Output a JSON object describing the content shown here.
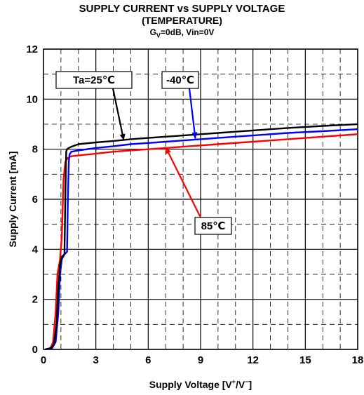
{
  "title": "SUPPLY CURRENT vs SUPPLY VOLTAGE",
  "subtitle": "(TEMPERATURE)",
  "conditions": {
    "gv": "G",
    "gv_sub": "V",
    "rest": "=0dB, Vin=0V"
  },
  "colors": {
    "ta25": "#000000",
    "m40": "#0000ff",
    "p85": "#ff0000",
    "grid": "#000000"
  },
  "chart_data": {
    "type": "line",
    "title": "SUPPLY CURRENT vs SUPPLY VOLTAGE",
    "subtitle": "(TEMPERATURE)",
    "xlabel": "Supply Voltage [V+/V−]",
    "ylabel": "Supply Current [mA]",
    "xlim": [
      0,
      18
    ],
    "ylim": [
      0,
      12
    ],
    "xticks": [
      "0",
      "3",
      "6",
      "9",
      "12",
      "15",
      "18"
    ],
    "yticks": [
      "0",
      "2",
      "4",
      "6",
      "8",
      "10",
      "12"
    ],
    "grid": true,
    "series": [
      {
        "name": "Ta=25℃",
        "color": "#000000",
        "x": [
          0.1,
          0.4,
          0.6,
          0.75,
          0.85,
          0.95,
          1.05,
          1.2,
          1.25,
          1.3,
          1.35,
          1.45,
          1.6,
          2.0,
          3,
          4,
          5,
          6,
          7,
          8,
          9,
          10,
          12,
          14,
          16,
          18
        ],
        "y": [
          0,
          0.05,
          0.2,
          1.0,
          2.5,
          3.4,
          3.7,
          3.8,
          6.0,
          7.9,
          8.0,
          8.05,
          8.1,
          8.2,
          8.27,
          8.33,
          8.4,
          8.45,
          8.5,
          8.55,
          8.6,
          8.65,
          8.75,
          8.85,
          8.93,
          9.0
        ]
      },
      {
        "name": "-40℃",
        "color": "#0000ff",
        "x": [
          0.1,
          0.5,
          0.7,
          0.85,
          0.95,
          1.05,
          1.2,
          1.35,
          1.4,
          1.45,
          1.5,
          1.6,
          2.0,
          3,
          4,
          5,
          6,
          7,
          8,
          9,
          10,
          12,
          14,
          16,
          18
        ],
        "y": [
          0,
          0.05,
          0.3,
          1.5,
          3.0,
          3.6,
          3.8,
          3.9,
          6.0,
          7.5,
          7.8,
          7.9,
          7.95,
          8.05,
          8.12,
          8.2,
          8.25,
          8.3,
          8.35,
          8.4,
          8.45,
          8.55,
          8.65,
          8.72,
          8.8
        ]
      },
      {
        "name": "85℃",
        "color": "#ff0000",
        "x": [
          0.1,
          0.4,
          0.55,
          0.7,
          0.8,
          0.95,
          1.05,
          1.15,
          1.25,
          1.4,
          1.6,
          2.0,
          3,
          4,
          5,
          6,
          7,
          8,
          9,
          10,
          12,
          14,
          16,
          18
        ],
        "y": [
          0,
          0.05,
          0.3,
          1.5,
          3.0,
          3.6,
          4.5,
          6.8,
          7.5,
          7.65,
          7.72,
          7.75,
          7.82,
          7.9,
          7.95,
          8.0,
          8.05,
          8.1,
          8.15,
          8.2,
          8.3,
          8.4,
          8.5,
          8.6
        ]
      }
    ],
    "annotations": [
      {
        "text": "Ta=25℃",
        "series": 0,
        "target": [
          4.6,
          8.35
        ]
      },
      {
        "text": "-40℃",
        "series": 1,
        "target": [
          8.7,
          8.42
        ]
      },
      {
        "text": "85℃",
        "series": 2,
        "target": [
          7.0,
          8.08
        ]
      }
    ]
  }
}
